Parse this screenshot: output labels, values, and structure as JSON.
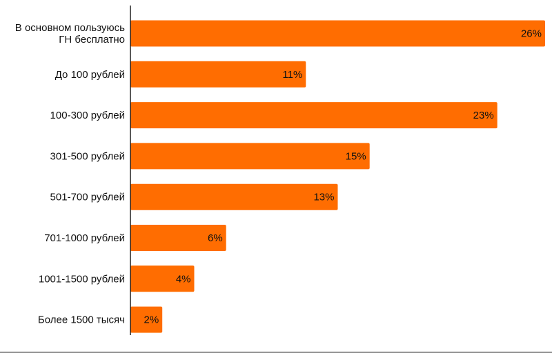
{
  "chart_data": {
    "type": "bar",
    "orientation": "horizontal",
    "title": "",
    "xlabel": "",
    "ylabel": "",
    "categories": [
      "В основном пользуюсь ГН бесплатно",
      "До 100 рублей",
      "100-300 рублей",
      "301-500 рублей",
      "501-700 рублей",
      "701-1000 рублей",
      "1001-1500 рублей",
      "Более 1500 тысяч"
    ],
    "category_lines": [
      [
        "В основном пользуюсь",
        "ГН бесплатно"
      ],
      [
        "До 100 рублей"
      ],
      [
        "100-300 рублей"
      ],
      [
        "301-500 рублей"
      ],
      [
        "501-700 рублей"
      ],
      [
        "701-1000 рублей"
      ],
      [
        "1001-1500 рублей"
      ],
      [
        "Более 1500 тысяч"
      ]
    ],
    "values": [
      26,
      11,
      23,
      15,
      13,
      6,
      4,
      2
    ],
    "value_labels": [
      "26%",
      "11%",
      "23%",
      "15%",
      "13%",
      "6%",
      "4%",
      "2%"
    ],
    "unit": "%",
    "xlim": [
      0,
      26
    ],
    "grid": false,
    "legend": "none",
    "colors": {
      "bar": "#ff6d01",
      "axis": "#222222",
      "text": "#111111"
    }
  }
}
